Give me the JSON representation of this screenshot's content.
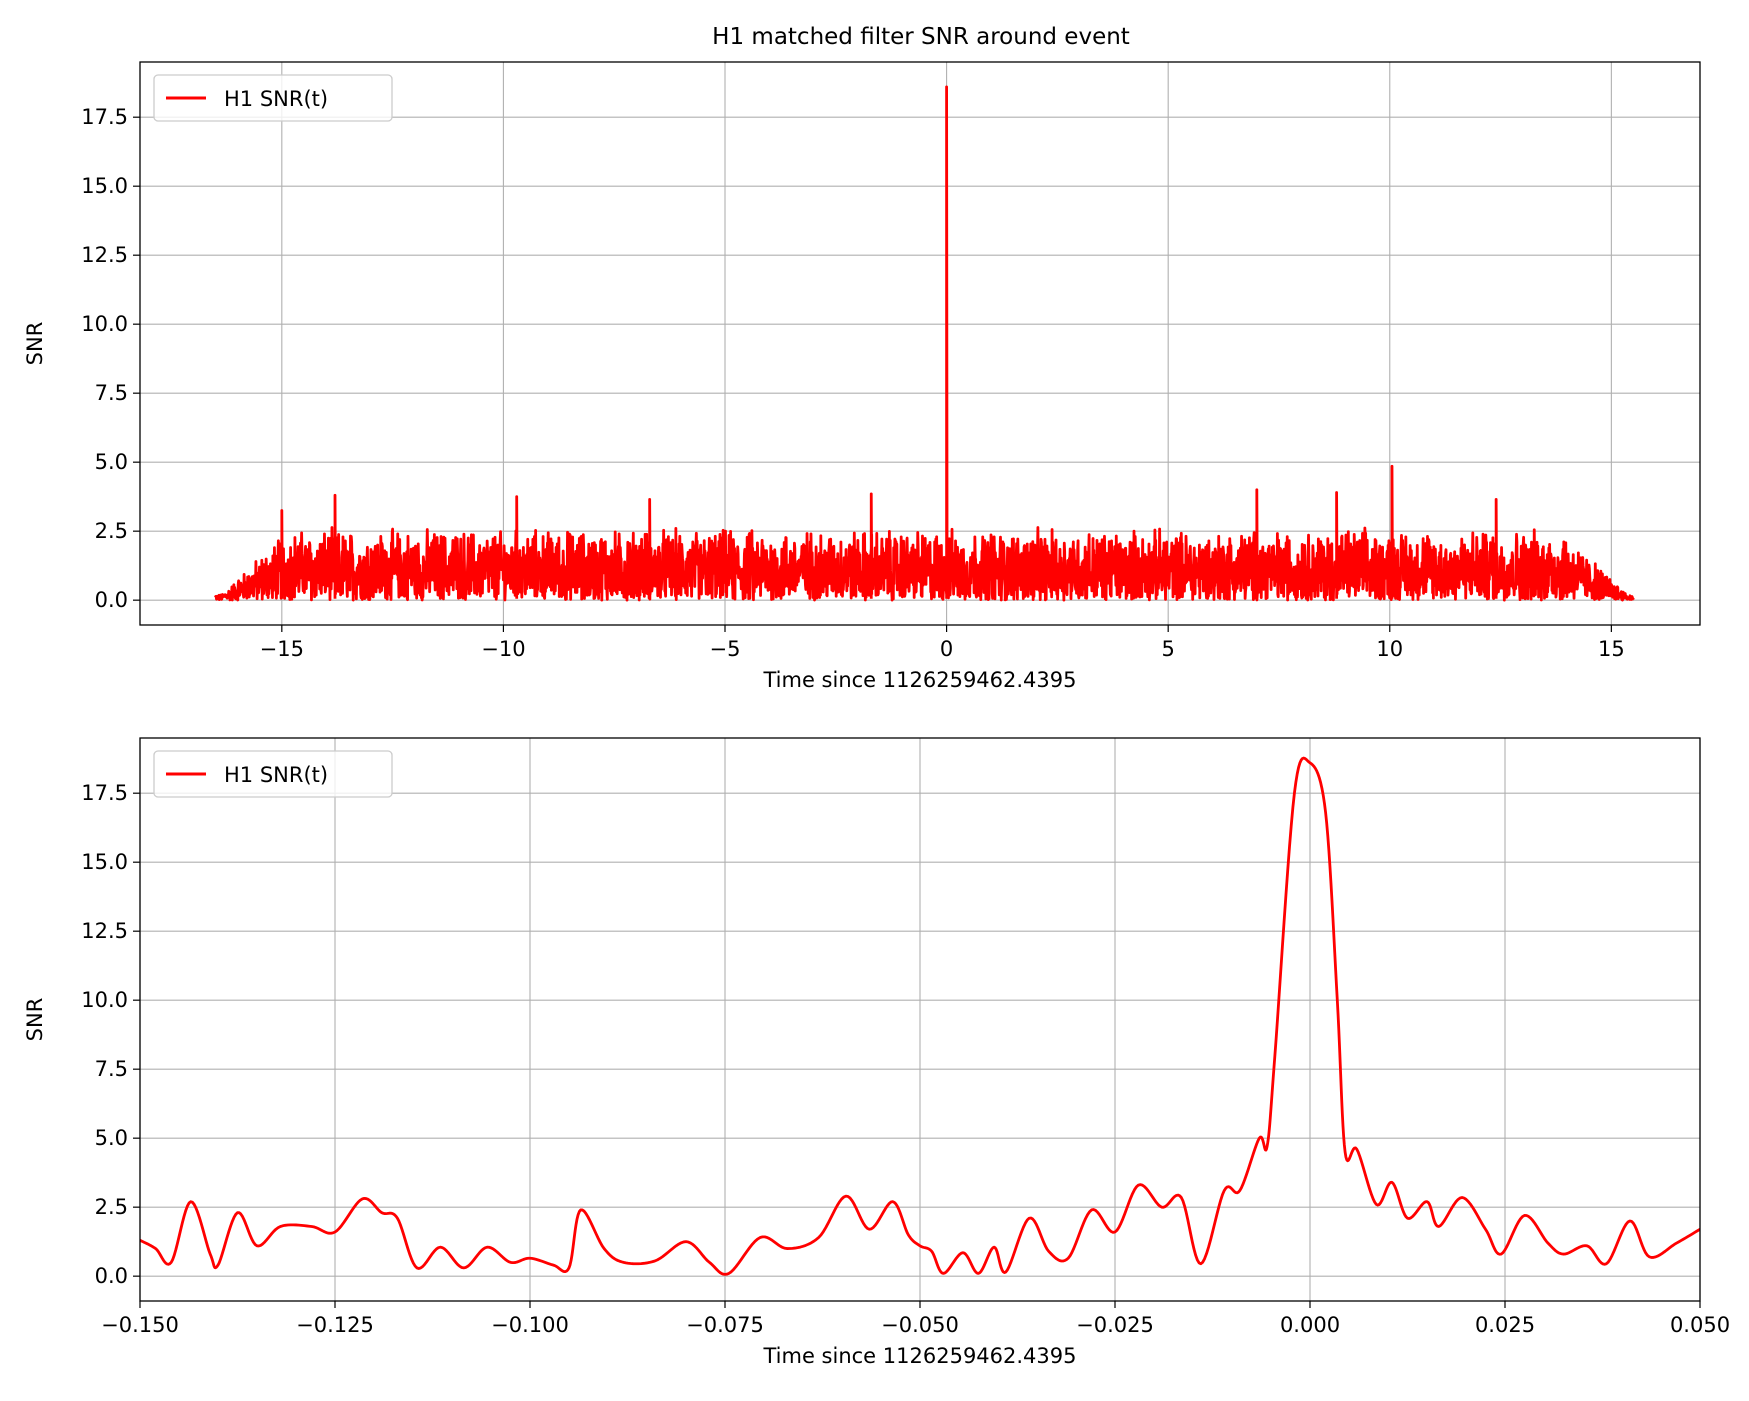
{
  "figure": {
    "title": "H1 matched filter SNR around event"
  },
  "chart_data": [
    {
      "type": "line",
      "title": "H1 matched filter SNR around event",
      "xlabel": "Time since 1126259462.4395",
      "ylabel": "SNR",
      "xlim": [
        -18.2,
        17.0
      ],
      "ylim": [
        -0.9,
        19.5
      ],
      "x_ticks": [
        -15,
        -10,
        -5,
        0,
        5,
        10,
        15
      ],
      "x_tick_labels": [
        "−15",
        "−10",
        "−5",
        "0",
        "5",
        "10",
        "15"
      ],
      "y_ticks": [
        0.0,
        2.5,
        5.0,
        7.5,
        10.0,
        12.5,
        15.0,
        17.5
      ],
      "y_tick_labels": [
        "0.0",
        "2.5",
        "5.0",
        "7.5",
        "10.0",
        "12.5",
        "15.0",
        "17.5"
      ],
      "grid": true,
      "legend": {
        "position": "upper-left",
        "entries": [
          "H1 SNR(t)"
        ]
      },
      "series": [
        {
          "name": "H1 SNR(t)",
          "color": "#ff0000",
          "x_range": [
            -16.5,
            15.5
          ],
          "noise_envelope_peak": 2.7,
          "peaks": [
            {
              "x": 0.0,
              "y": 18.6
            },
            {
              "x": 10.05,
              "y": 4.85
            },
            {
              "x": -13.8,
              "y": 3.8
            },
            {
              "x": -9.7,
              "y": 3.75
            },
            {
              "x": -6.7,
              "y": 3.65
            },
            {
              "x": -1.7,
              "y": 3.85
            },
            {
              "x": 7.0,
              "y": 4.0
            },
            {
              "x": 8.8,
              "y": 3.9
            },
            {
              "x": 12.4,
              "y": 3.65
            },
            {
              "x": -15.0,
              "y": 3.25
            }
          ]
        }
      ]
    },
    {
      "type": "line",
      "xlabel": "Time since 1126259462.4395",
      "ylabel": "SNR",
      "xlim": [
        -0.15,
        0.05
      ],
      "ylim": [
        -0.9,
        19.5
      ],
      "x_ticks": [
        -0.15,
        -0.125,
        -0.1,
        -0.075,
        -0.05,
        -0.025,
        0.0,
        0.025,
        0.05
      ],
      "x_tick_labels": [
        "−0.150",
        "−0.125",
        "−0.100",
        "−0.075",
        "−0.050",
        "−0.025",
        "0.000",
        "0.025",
        "0.050"
      ],
      "y_ticks": [
        0.0,
        2.5,
        5.0,
        7.5,
        10.0,
        12.5,
        15.0,
        17.5
      ],
      "y_tick_labels": [
        "0.0",
        "2.5",
        "5.0",
        "7.5",
        "10.0",
        "12.5",
        "15.0",
        "17.5"
      ],
      "grid": true,
      "legend": {
        "position": "upper-left",
        "entries": [
          "H1 SNR(t)"
        ]
      },
      "series": [
        {
          "name": "H1 SNR(t)",
          "color": "#ff0000",
          "x": [
            -0.15,
            -0.148,
            -0.146,
            -0.1435,
            -0.141,
            -0.14,
            -0.1375,
            -0.135,
            -0.132,
            -0.128,
            -0.125,
            -0.1215,
            -0.119,
            -0.117,
            -0.1145,
            -0.1115,
            -0.1085,
            -0.1055,
            -0.1025,
            -0.1,
            -0.097,
            -0.095,
            -0.0935,
            -0.0905,
            -0.088,
            -0.084,
            -0.08,
            -0.077,
            -0.0745,
            -0.0705,
            -0.067,
            -0.063,
            -0.0595,
            -0.0565,
            -0.0535,
            -0.0515,
            -0.05,
            -0.0485,
            -0.047,
            -0.0445,
            -0.0425,
            -0.0405,
            -0.039,
            -0.036,
            -0.0335,
            -0.031,
            -0.028,
            -0.025,
            -0.022,
            -0.019,
            -0.0165,
            -0.014,
            -0.011,
            -0.009,
            -0.0065,
            -0.0055,
            -0.0045,
            -0.002,
            0.0,
            0.002,
            0.0035,
            0.0045,
            0.006,
            0.0085,
            0.0105,
            0.0125,
            0.015,
            0.0165,
            0.0195,
            0.0225,
            0.0245,
            0.0275,
            0.0305,
            0.0325,
            0.0355,
            0.038,
            0.041,
            0.0435,
            0.047,
            0.05
          ],
          "y": [
            1.3,
            1.0,
            0.5,
            2.7,
            0.8,
            0.4,
            2.3,
            1.1,
            1.8,
            1.8,
            1.6,
            2.8,
            2.3,
            2.1,
            0.3,
            1.05,
            0.3,
            1.05,
            0.5,
            0.65,
            0.4,
            0.3,
            2.4,
            1.0,
            0.5,
            0.55,
            1.25,
            0.5,
            0.1,
            1.4,
            1.0,
            1.4,
            2.9,
            1.7,
            2.7,
            1.5,
            1.1,
            0.9,
            0.1,
            0.85,
            0.1,
            1.05,
            0.15,
            2.1,
            0.9,
            0.65,
            2.4,
            1.6,
            3.3,
            2.5,
            2.85,
            0.45,
            3.1,
            3.1,
            5.0,
            4.7,
            8.0,
            17.5,
            18.6,
            16.8,
            10.0,
            4.5,
            4.6,
            2.6,
            3.4,
            2.1,
            2.7,
            1.8,
            2.85,
            1.7,
            0.8,
            2.2,
            1.2,
            0.8,
            1.1,
            0.45,
            2.0,
            0.7,
            1.2,
            1.7
          ]
        }
      ]
    }
  ]
}
